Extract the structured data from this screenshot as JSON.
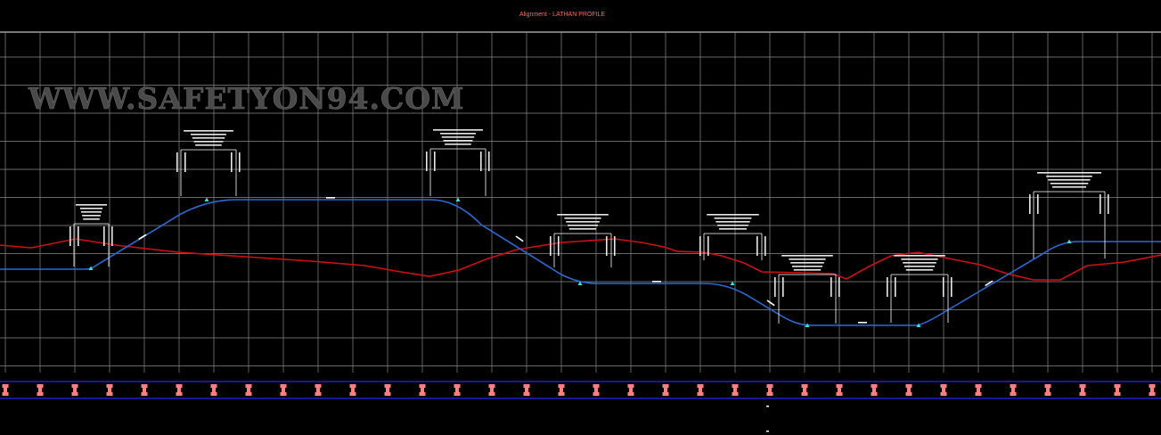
{
  "title": "Alignment - LATHAN PROFILE",
  "watermark": "WWW.SAFETYON94.COM",
  "colors": {
    "background": "#000000",
    "grid": "#8a8a8a",
    "existing_ground": "#d01010",
    "design_profile": "#2a6bd8",
    "pvi_marker": "#40e0d0",
    "band_line": "#2020c8",
    "band_marker": "#ff7f7f",
    "title": "#ff6b5a"
  }
}
